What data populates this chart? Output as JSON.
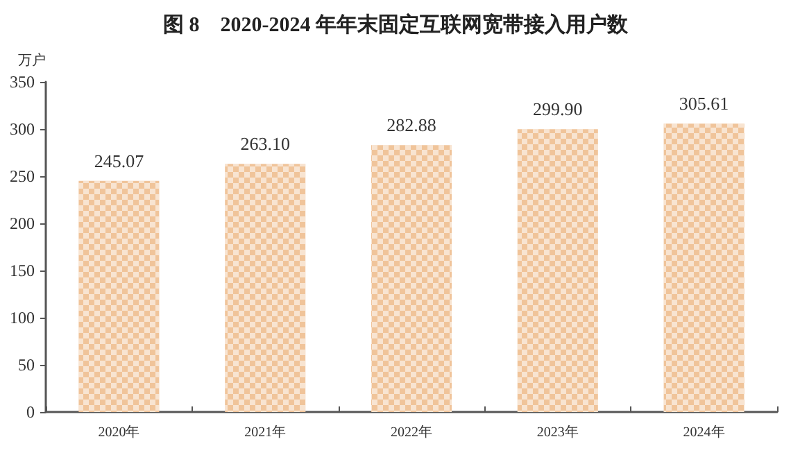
{
  "chart_data": {
    "type": "bar",
    "title": "图 8    2020-2024 年年末固定互联网宽带接入用户数",
    "ylabel": "万户",
    "categories": [
      "2020年",
      "2021年",
      "2022年",
      "2023年",
      "2024年"
    ],
    "values": [
      245.07,
      263.1,
      282.88,
      299.9,
      305.61
    ],
    "value_labels": [
      "245.07",
      "263.10",
      "282.88",
      "299.90",
      "305.61"
    ],
    "color": "#f0c49a",
    "ylim": [
      0,
      350
    ],
    "yticks": [
      0,
      50,
      100,
      150,
      200,
      250,
      300,
      350
    ],
    "grid": false
  }
}
